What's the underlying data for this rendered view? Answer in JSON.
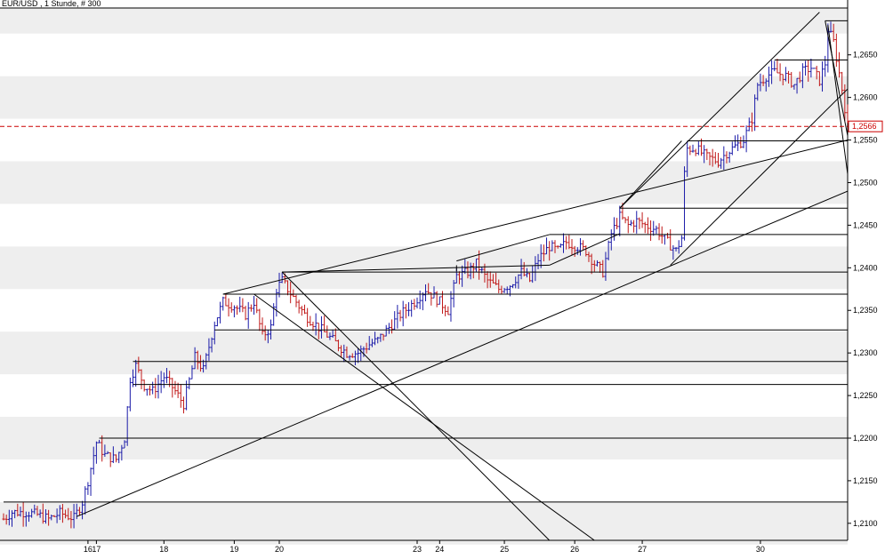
{
  "chart_data": {
    "type": "bar",
    "title": "EUR/USD , 1 Stunde, # 300",
    "ylim": [
      1.208,
      1.2705
    ],
    "y_ticks": [
      "1,2100",
      "1,2150",
      "1,2200",
      "1,2250",
      "1,2300",
      "1,2350",
      "1,2400",
      "1,2450",
      "1,2500",
      "1,2550",
      "1,2600",
      "1,2650"
    ],
    "y_tick_values": [
      1.21,
      1.215,
      1.22,
      1.225,
      1.23,
      1.235,
      1.24,
      1.245,
      1.25,
      1.255,
      1.26,
      1.265
    ],
    "x_tick_labels": [
      "16",
      "17",
      "18",
      "19",
      "20",
      "23",
      "24",
      "25",
      "26",
      "27",
      "30"
    ],
    "bar_index_range": [
      0,
      300
    ],
    "x_tick_positions": [
      30,
      33,
      57,
      82,
      98,
      147,
      155,
      178,
      203,
      227,
      269
    ],
    "current_price": {
      "value": 1.2566,
      "label": "1,2566",
      "color": "#cc0000"
    },
    "colors": {
      "up": "#1a1aa8",
      "down": "#c01818",
      "line": "#000000",
      "band": "#eeeeee"
    },
    "grid": "horizontal bands",
    "series_anchors": [
      [
        0,
        1.2105
      ],
      [
        3,
        1.2113
      ],
      [
        8,
        1.2113
      ],
      [
        12,
        1.211
      ],
      [
        16,
        1.2105
      ],
      [
        20,
        1.2112
      ],
      [
        25,
        1.2106
      ],
      [
        28,
        1.2125
      ],
      [
        30,
        1.215
      ],
      [
        33,
        1.2195
      ],
      [
        36,
        1.218
      ],
      [
        40,
        1.2175
      ],
      [
        43,
        1.22
      ],
      [
        45,
        1.227
      ],
      [
        47,
        1.2285
      ],
      [
        50,
        1.2262
      ],
      [
        53,
        1.2255
      ],
      [
        57,
        1.2272
      ],
      [
        60,
        1.226
      ],
      [
        64,
        1.224
      ],
      [
        68,
        1.2295
      ],
      [
        71,
        1.228
      ],
      [
        75,
        1.2335
      ],
      [
        78,
        1.236
      ],
      [
        82,
        1.2355
      ],
      [
        86,
        1.2345
      ],
      [
        89,
        1.236
      ],
      [
        92,
        1.232
      ],
      [
        95,
        1.233
      ],
      [
        97,
        1.2375
      ],
      [
        99,
        1.2385
      ],
      [
        103,
        1.2365
      ],
      [
        107,
        1.2345
      ],
      [
        112,
        1.233
      ],
      [
        117,
        1.2315
      ],
      [
        122,
        1.23
      ],
      [
        126,
        1.23
      ],
      [
        130,
        1.231
      ],
      [
        133,
        1.2315
      ],
      [
        137,
        1.233
      ],
      [
        141,
        1.2345
      ],
      [
        146,
        1.236
      ],
      [
        150,
        1.2375
      ],
      [
        155,
        1.236
      ],
      [
        158,
        1.235
      ],
      [
        161,
        1.239
      ],
      [
        165,
        1.2395
      ],
      [
        168,
        1.2405
      ],
      [
        172,
        1.2385
      ],
      [
        176,
        1.2375
      ],
      [
        180,
        1.238
      ],
      [
        184,
        1.2395
      ],
      [
        187,
        1.2385
      ],
      [
        190,
        1.241
      ],
      [
        194,
        1.2425
      ],
      [
        197,
        1.242
      ],
      [
        200,
        1.243
      ],
      [
        204,
        1.2425
      ],
      [
        207,
        1.242
      ],
      [
        210,
        1.2405
      ],
      [
        213,
        1.2395
      ],
      [
        216,
        1.244
      ],
      [
        219,
        1.246
      ],
      [
        222,
        1.245
      ],
      [
        225,
        1.2455
      ],
      [
        228,
        1.245
      ],
      [
        232,
        1.2445
      ],
      [
        236,
        1.243
      ],
      [
        239,
        1.242
      ],
      [
        241,
        1.2435
      ],
      [
        242,
        1.251
      ],
      [
        243,
        1.254
      ],
      [
        246,
        1.254
      ],
      [
        250,
        1.253
      ],
      [
        254,
        1.2525
      ],
      [
        257,
        1.2535
      ],
      [
        261,
        1.2545
      ],
      [
        263,
        1.255
      ],
      [
        266,
        1.2575
      ],
      [
        268,
        1.2615
      ],
      [
        271,
        1.2625
      ],
      [
        274,
        1.263
      ],
      [
        278,
        1.2625
      ],
      [
        281,
        1.2615
      ],
      [
        284,
        1.263
      ],
      [
        287,
        1.2635
      ],
      [
        290,
        1.262
      ],
      [
        292,
        1.264
      ],
      [
        293,
        1.268
      ],
      [
        295,
        1.2665
      ],
      [
        298,
        1.261
      ],
      [
        300,
        1.2566
      ]
    ],
    "trendlines": [
      [
        [
          0,
          1.2125
        ],
        [
          300,
          1.2125
        ]
      ],
      [
        [
          34,
          1.22
        ],
        [
          300,
          1.22
        ]
      ],
      [
        [
          46,
          1.2263
        ],
        [
          300,
          1.2263
        ]
      ],
      [
        [
          46,
          1.229
        ],
        [
          300,
          1.229
        ]
      ],
      [
        [
          75,
          1.2327
        ],
        [
          300,
          1.2327
        ]
      ],
      [
        [
          78,
          1.2369
        ],
        [
          300,
          1.2369
        ]
      ],
      [
        [
          99,
          1.2395
        ],
        [
          300,
          1.2395
        ]
      ],
      [
        [
          194,
          1.2439
        ],
        [
          300,
          1.2439
        ]
      ],
      [
        [
          219,
          1.247
        ],
        [
          300,
          1.247
        ]
      ],
      [
        [
          243,
          1.2549
        ],
        [
          300,
          1.2549
        ]
      ],
      [
        [
          274,
          1.2644
        ],
        [
          300,
          1.2644
        ]
      ],
      [
        [
          292,
          1.269
        ],
        [
          300,
          1.269
        ]
      ],
      [
        [
          26,
          1.2108
        ],
        [
          300,
          1.249
        ]
      ],
      [
        [
          78,
          1.2369
        ],
        [
          300,
          1.255
        ]
      ],
      [
        [
          99,
          1.2395
        ],
        [
          194,
          1.2403
        ]
      ],
      [
        [
          194,
          1.2403
        ],
        [
          219,
          1.244
        ]
      ],
      [
        [
          219,
          1.247
        ],
        [
          241,
          1.2549
        ]
      ],
      [
        [
          161,
          1.2403
        ],
        [
          161,
          1.2396
        ]
      ],
      [
        [
          161,
          1.2408
        ],
        [
          194,
          1.2439
        ]
      ],
      [
        [
          237,
          1.2403
        ],
        [
          300,
          1.261
        ]
      ],
      [
        [
          219,
          1.247
        ],
        [
          290,
          1.27
        ]
      ],
      [
        [
          99,
          1.2395
        ],
        [
          194,
          1.208
        ]
      ],
      [
        [
          89,
          1.2369
        ],
        [
          210,
          1.208
        ]
      ],
      [
        [
          292,
          1.269
        ],
        [
          300,
          1.2555
        ]
      ],
      [
        [
          293,
          1.2685
        ],
        [
          300,
          1.251
        ]
      ]
    ]
  }
}
